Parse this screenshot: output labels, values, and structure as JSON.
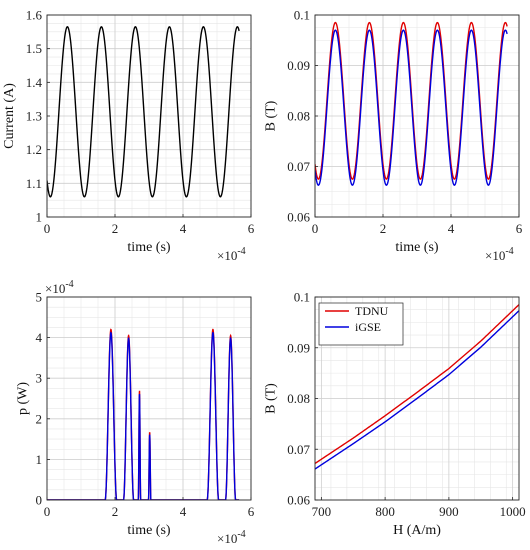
{
  "chart_data": [
    {
      "id": "current",
      "type": "line",
      "xlabel": "time (s)",
      "ylabel": "Current (A)",
      "x_exponent": "×10",
      "x_exponent_power": "-4",
      "xlim": [
        0,
        6
      ],
      "ylim": [
        1,
        1.6
      ],
      "xticks": [
        "0",
        "2",
        "4",
        "6"
      ],
      "yticks": [
        "1",
        "1.1",
        "1.2",
        "1.3",
        "1.4",
        "1.5",
        "1.6"
      ],
      "grid": true,
      "legend": null,
      "x_range_data": [
        0,
        5.65
      ],
      "series": [
        {
          "color": "#000000",
          "waveform": "cosine",
          "min": 1.06,
          "max": 1.565,
          "period": 1.0,
          "peak_first_at": 0.6
        }
      ]
    },
    {
      "id": "flux",
      "type": "line",
      "xlabel": "time (s)",
      "ylabel": "B (T)",
      "x_exponent": "×10",
      "x_exponent_power": "-4",
      "xlim": [
        0,
        6
      ],
      "ylim": [
        0.06,
        0.1
      ],
      "xticks": [
        "0",
        "2",
        "4",
        "6"
      ],
      "yticks": [
        "0.06",
        "0.07",
        "0.08",
        "0.09",
        "0.1"
      ],
      "grid": true,
      "legend": null,
      "x_range_data": [
        0,
        5.65
      ],
      "series": [
        {
          "color": "#e00000",
          "waveform": "cosine",
          "min": 0.0675,
          "max": 0.0985,
          "period": 1.0,
          "peak_first_at": 0.6
        },
        {
          "color": "#0000dd",
          "waveform": "cosine",
          "min": 0.0663,
          "max": 0.097,
          "period": 1.0,
          "peak_first_at": 0.6
        }
      ]
    },
    {
      "id": "power",
      "type": "line",
      "xlabel": "time (s)",
      "ylabel": "p (W)",
      "y_exponent": "×10",
      "y_exponent_power": "-4",
      "x_exponent": "×10",
      "x_exponent_power": "-4",
      "xlim": [
        0,
        6
      ],
      "ylim": [
        0,
        5
      ],
      "xticks": [
        "0",
        "2",
        "4",
        "6"
      ],
      "yticks": [
        "0",
        "1",
        "2",
        "3",
        "4",
        "5"
      ],
      "grid": true,
      "legend": null,
      "x_range_data": [
        0,
        5.65
      ],
      "series": [
        {
          "color": "#e00000",
          "peaks": [
            {
              "center": 1.88,
              "half_width": 0.17,
              "height": 4.2
            },
            {
              "center": 2.4,
              "half_width": 0.15,
              "height": 4.05
            },
            {
              "center": 2.72,
              "half_width": 0.035,
              "height": 2.7
            },
            {
              "center": 3.02,
              "half_width": 0.035,
              "height": 1.68
            },
            {
              "center": 4.88,
              "half_width": 0.17,
              "height": 4.2
            },
            {
              "center": 5.4,
              "half_width": 0.15,
              "height": 4.05
            }
          ]
        },
        {
          "color": "#0000dd",
          "peaks": [
            {
              "center": 1.88,
              "half_width": 0.17,
              "height": 4.12
            },
            {
              "center": 2.4,
              "half_width": 0.15,
              "height": 3.98
            },
            {
              "center": 2.72,
              "half_width": 0.035,
              "height": 2.62
            },
            {
              "center": 3.02,
              "half_width": 0.035,
              "height": 1.62
            },
            {
              "center": 4.88,
              "half_width": 0.17,
              "height": 4.12
            },
            {
              "center": 5.4,
              "half_width": 0.15,
              "height": 3.98
            }
          ]
        }
      ]
    },
    {
      "id": "bh",
      "type": "line",
      "xlabel": "H (A/m)",
      "ylabel": "B (T)",
      "xlim": [
        690,
        1010
      ],
      "ylim": [
        0.06,
        0.1
      ],
      "xticks": [
        "700",
        "800",
        "900",
        "1000"
      ],
      "yticks": [
        "0.06",
        "0.07",
        "0.08",
        "0.09",
        "0.1"
      ],
      "grid": true,
      "legend": "top-left",
      "series": [
        {
          "name": "TDNU",
          "color": "#e00000",
          "x": [
            690,
            750,
            800,
            850,
            900,
            950,
            1010
          ],
          "y": [
            0.0672,
            0.0722,
            0.0766,
            0.0812,
            0.0859,
            0.0913,
            0.0985
          ]
        },
        {
          "name": "iGSE",
          "color": "#0000dd",
          "x": [
            690,
            750,
            800,
            850,
            900,
            950,
            1010
          ],
          "y": [
            0.0661,
            0.0711,
            0.0754,
            0.08,
            0.0847,
            0.0901,
            0.0973
          ]
        }
      ]
    }
  ]
}
